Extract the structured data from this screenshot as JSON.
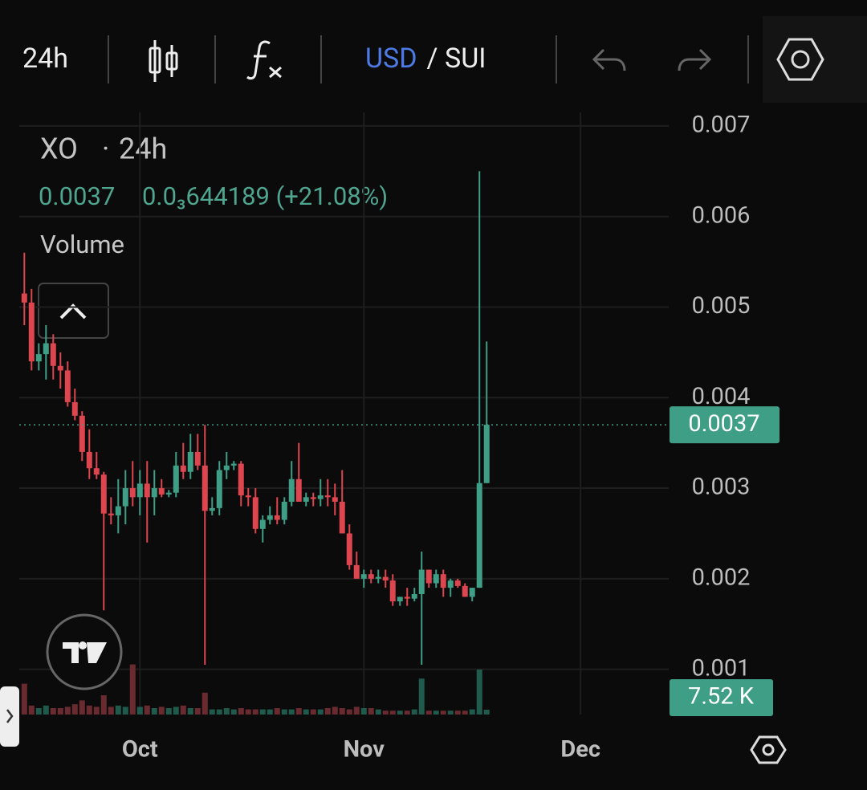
{
  "toolbar": {
    "interval": "24h",
    "quote": "USD",
    "base": "/ SUI"
  },
  "chart_data": {
    "type": "candlestick",
    "title": "XO",
    "interval": "24h",
    "change": "0.0₃644189 (+21.08%)",
    "last_price": 0.0037,
    "up_color": "#3f9e86",
    "down_color": "#dd454f",
    "categories": [
      null,
      null,
      null,
      null,
      null,
      null,
      null,
      null,
      null,
      null,
      null,
      null,
      null,
      null,
      null,
      null,
      null,
      null,
      null,
      null,
      null,
      null,
      null,
      null,
      null,
      null,
      null,
      null,
      null,
      null,
      null,
      null,
      null,
      null,
      null,
      null,
      null,
      null,
      null,
      null,
      null,
      null,
      null,
      null,
      null,
      null,
      null,
      null,
      null,
      null,
      null,
      null,
      null,
      null,
      null,
      null,
      null,
      null,
      null,
      null,
      null,
      null,
      null,
      null,
      null
    ],
    "open": [
      0.00515,
      0.00505,
      0.0044,
      0.00448,
      0.0046,
      0.00435,
      0.0043,
      0.00395,
      0.0038,
      0.0034,
      0.00322,
      0.00315,
      0.00272,
      0.0027,
      0.0028,
      0.003,
      0.0029,
      0.00305,
      0.0029,
      0.003,
      0.00293,
      0.00295,
      0.00325,
      0.00318,
      0.0034,
      0.00325,
      0.00275,
      0.00278,
      0.0032,
      0.00325,
      0.00327,
      0.00292,
      0.0029,
      0.00255,
      0.00265,
      0.0027,
      0.00265,
      0.00285,
      0.0031,
      0.00285,
      0.0029,
      0.00288,
      0.00292,
      0.0029,
      0.00285,
      0.0025,
      0.00215,
      0.002,
      0.00205,
      0.002,
      0.00202,
      0.00198,
      0.00175,
      0.0018,
      0.00178,
      0.00183,
      0.0021,
      0.00195,
      0.00205,
      0.0019,
      0.00198,
      0.00192,
      0.0018,
      0.0019,
      0.003056
    ],
    "high": [
      0.0056,
      0.0052,
      0.0046,
      0.0048,
      0.0047,
      0.0045,
      0.0044,
      0.0041,
      0.00385,
      0.00365,
      0.0034,
      0.00318,
      0.0029,
      0.0031,
      0.0032,
      0.0033,
      0.0032,
      0.0033,
      0.0032,
      0.0031,
      0.00298,
      0.0034,
      0.0035,
      0.0036,
      0.0036,
      0.0037,
      0.0029,
      0.0033,
      0.0034,
      0.0033,
      0.0033,
      0.003,
      0.003,
      0.0027,
      0.0028,
      0.0029,
      0.0029,
      0.0033,
      0.0035,
      0.00295,
      0.00295,
      0.0031,
      0.0031,
      0.00305,
      0.0032,
      0.0026,
      0.0023,
      0.0021,
      0.0021,
      0.0021,
      0.0021,
      0.00205,
      0.0018,
      0.0019,
      0.0019,
      0.0023,
      0.0021,
      0.0021,
      0.0021,
      0.002,
      0.002,
      0.00195,
      0.0019,
      0.0065,
      0.00462
    ],
    "low": [
      0.0048,
      0.0043,
      0.0043,
      0.0042,
      0.0042,
      0.0041,
      0.0039,
      0.00375,
      0.0033,
      0.0031,
      0.0031,
      0.00165,
      0.0026,
      0.0025,
      0.0026,
      0.0028,
      0.0027,
      0.0024,
      0.0027,
      0.0029,
      0.0029,
      0.0029,
      0.0031,
      0.0031,
      0.0032,
      0.00105,
      0.0027,
      0.0027,
      0.0031,
      0.0032,
      0.0028,
      0.0028,
      0.0025,
      0.0024,
      0.0026,
      0.0026,
      0.0026,
      0.0028,
      0.0029,
      0.0028,
      0.0028,
      0.0028,
      0.0028,
      0.0027,
      0.0025,
      0.0021,
      0.002,
      0.0019,
      0.00195,
      0.00195,
      0.0019,
      0.0017,
      0.0017,
      0.0017,
      0.00175,
      0.00105,
      0.0019,
      0.0019,
      0.0018,
      0.0018,
      0.0019,
      0.0018,
      0.00175,
      0.0019,
      0.003056
    ],
    "close": [
      0.00505,
      0.0044,
      0.00448,
      0.0046,
      0.00435,
      0.0043,
      0.00395,
      0.0038,
      0.0034,
      0.00322,
      0.00315,
      0.00272,
      0.0027,
      0.0028,
      0.003,
      0.0029,
      0.00305,
      0.0029,
      0.003,
      0.00293,
      0.00295,
      0.00325,
      0.00318,
      0.0034,
      0.00325,
      0.00275,
      0.00278,
      0.0032,
      0.00325,
      0.00327,
      0.00292,
      0.0029,
      0.00255,
      0.00265,
      0.0027,
      0.00265,
      0.00285,
      0.0031,
      0.00285,
      0.0029,
      0.00288,
      0.00292,
      0.0029,
      0.00285,
      0.0025,
      0.00215,
      0.002,
      0.00205,
      0.002,
      0.00202,
      0.00198,
      0.00175,
      0.0018,
      0.00178,
      0.00183,
      0.0021,
      0.00195,
      0.00205,
      0.0019,
      0.00198,
      0.00192,
      0.0018,
      0.0019,
      0.003056,
      0.0037
    ],
    "volume": {
      "name": "Volume",
      "up_color": "#1f5a4c",
      "down_color": "#6a2b30",
      "values": [
        48,
        14,
        10,
        14,
        10,
        10,
        12,
        16,
        22,
        14,
        12,
        30,
        12,
        14,
        12,
        78,
        12,
        14,
        10,
        12,
        10,
        12,
        14,
        10,
        10,
        34,
        8,
        8,
        10,
        8,
        10,
        8,
        8,
        8,
        8,
        10,
        8,
        8,
        10,
        8,
        8,
        8,
        10,
        12,
        10,
        8,
        12,
        10,
        10,
        8,
        6,
        6,
        6,
        6,
        8,
        56,
        6,
        6,
        6,
        6,
        6,
        6,
        8,
        70,
        7.52
      ],
      "value_labels": [
        null,
        null,
        null,
        null,
        null,
        null,
        null,
        null,
        null,
        null,
        null,
        null,
        null,
        null,
        null,
        null,
        null,
        null,
        null,
        null,
        null,
        null,
        null,
        null,
        null,
        null,
        null,
        null,
        null,
        null,
        null,
        null,
        null,
        null,
        null,
        null,
        null,
        null,
        null,
        null,
        null,
        null,
        null,
        null,
        null,
        null,
        null,
        null,
        null,
        null,
        null,
        null,
        null,
        null,
        null,
        null,
        null,
        null,
        null,
        null,
        null,
        null,
        null,
        null,
        "7.52 K"
      ]
    },
    "xlim": [
      -0.7,
      89.2
    ],
    "xticks": [
      {
        "value": 16,
        "label": "Oct"
      },
      {
        "value": 47,
        "label": "Nov"
      },
      {
        "value": 77,
        "label": "Dec"
      }
    ],
    "ylim": [
      0.0005,
      0.00715
    ],
    "yticks": [
      0.001,
      0.002,
      0.003,
      0.004,
      0.005,
      0.006,
      0.007
    ],
    "y2lim": [
      0,
      100
    ],
    "grid": true
  }
}
